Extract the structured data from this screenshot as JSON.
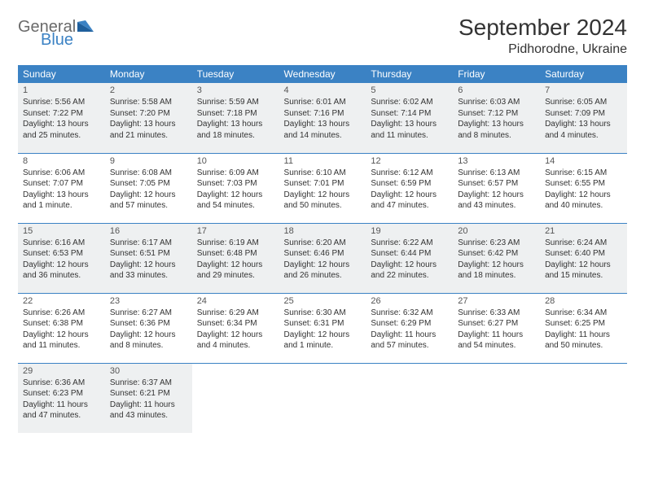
{
  "brand": {
    "line1": "General",
    "line2": "Blue"
  },
  "title": "September 2024",
  "location": "Pidhorodne, Ukraine",
  "colors": {
    "header_bg": "#3b82c4",
    "header_fg": "#ffffff",
    "shaded_bg": "#eef0f1",
    "border": "#3b82c4",
    "text": "#333333",
    "logo_gray": "#6a6a6a",
    "logo_blue": "#3b82c4"
  },
  "typography": {
    "title_fontsize": 28,
    "location_fontsize": 16,
    "dayheader_fontsize": 12,
    "daynum_fontsize": 11,
    "info_fontsize": 10
  },
  "day_names": [
    "Sunday",
    "Monday",
    "Tuesday",
    "Wednesday",
    "Thursday",
    "Friday",
    "Saturday"
  ],
  "weeks": [
    {
      "shaded": true,
      "days": [
        {
          "n": "1",
          "sr": "Sunrise: 5:56 AM",
          "ss": "Sunset: 7:22 PM",
          "dl": "Daylight: 13 hours and 25 minutes."
        },
        {
          "n": "2",
          "sr": "Sunrise: 5:58 AM",
          "ss": "Sunset: 7:20 PM",
          "dl": "Daylight: 13 hours and 21 minutes."
        },
        {
          "n": "3",
          "sr": "Sunrise: 5:59 AM",
          "ss": "Sunset: 7:18 PM",
          "dl": "Daylight: 13 hours and 18 minutes."
        },
        {
          "n": "4",
          "sr": "Sunrise: 6:01 AM",
          "ss": "Sunset: 7:16 PM",
          "dl": "Daylight: 13 hours and 14 minutes."
        },
        {
          "n": "5",
          "sr": "Sunrise: 6:02 AM",
          "ss": "Sunset: 7:14 PM",
          "dl": "Daylight: 13 hours and 11 minutes."
        },
        {
          "n": "6",
          "sr": "Sunrise: 6:03 AM",
          "ss": "Sunset: 7:12 PM",
          "dl": "Daylight: 13 hours and 8 minutes."
        },
        {
          "n": "7",
          "sr": "Sunrise: 6:05 AM",
          "ss": "Sunset: 7:09 PM",
          "dl": "Daylight: 13 hours and 4 minutes."
        }
      ]
    },
    {
      "shaded": false,
      "days": [
        {
          "n": "8",
          "sr": "Sunrise: 6:06 AM",
          "ss": "Sunset: 7:07 PM",
          "dl": "Daylight: 13 hours and 1 minute."
        },
        {
          "n": "9",
          "sr": "Sunrise: 6:08 AM",
          "ss": "Sunset: 7:05 PM",
          "dl": "Daylight: 12 hours and 57 minutes."
        },
        {
          "n": "10",
          "sr": "Sunrise: 6:09 AM",
          "ss": "Sunset: 7:03 PM",
          "dl": "Daylight: 12 hours and 54 minutes."
        },
        {
          "n": "11",
          "sr": "Sunrise: 6:10 AM",
          "ss": "Sunset: 7:01 PM",
          "dl": "Daylight: 12 hours and 50 minutes."
        },
        {
          "n": "12",
          "sr": "Sunrise: 6:12 AM",
          "ss": "Sunset: 6:59 PM",
          "dl": "Daylight: 12 hours and 47 minutes."
        },
        {
          "n": "13",
          "sr": "Sunrise: 6:13 AM",
          "ss": "Sunset: 6:57 PM",
          "dl": "Daylight: 12 hours and 43 minutes."
        },
        {
          "n": "14",
          "sr": "Sunrise: 6:15 AM",
          "ss": "Sunset: 6:55 PM",
          "dl": "Daylight: 12 hours and 40 minutes."
        }
      ]
    },
    {
      "shaded": true,
      "days": [
        {
          "n": "15",
          "sr": "Sunrise: 6:16 AM",
          "ss": "Sunset: 6:53 PM",
          "dl": "Daylight: 12 hours and 36 minutes."
        },
        {
          "n": "16",
          "sr": "Sunrise: 6:17 AM",
          "ss": "Sunset: 6:51 PM",
          "dl": "Daylight: 12 hours and 33 minutes."
        },
        {
          "n": "17",
          "sr": "Sunrise: 6:19 AM",
          "ss": "Sunset: 6:48 PM",
          "dl": "Daylight: 12 hours and 29 minutes."
        },
        {
          "n": "18",
          "sr": "Sunrise: 6:20 AM",
          "ss": "Sunset: 6:46 PM",
          "dl": "Daylight: 12 hours and 26 minutes."
        },
        {
          "n": "19",
          "sr": "Sunrise: 6:22 AM",
          "ss": "Sunset: 6:44 PM",
          "dl": "Daylight: 12 hours and 22 minutes."
        },
        {
          "n": "20",
          "sr": "Sunrise: 6:23 AM",
          "ss": "Sunset: 6:42 PM",
          "dl": "Daylight: 12 hours and 18 minutes."
        },
        {
          "n": "21",
          "sr": "Sunrise: 6:24 AM",
          "ss": "Sunset: 6:40 PM",
          "dl": "Daylight: 12 hours and 15 minutes."
        }
      ]
    },
    {
      "shaded": false,
      "days": [
        {
          "n": "22",
          "sr": "Sunrise: 6:26 AM",
          "ss": "Sunset: 6:38 PM",
          "dl": "Daylight: 12 hours and 11 minutes."
        },
        {
          "n": "23",
          "sr": "Sunrise: 6:27 AM",
          "ss": "Sunset: 6:36 PM",
          "dl": "Daylight: 12 hours and 8 minutes."
        },
        {
          "n": "24",
          "sr": "Sunrise: 6:29 AM",
          "ss": "Sunset: 6:34 PM",
          "dl": "Daylight: 12 hours and 4 minutes."
        },
        {
          "n": "25",
          "sr": "Sunrise: 6:30 AM",
          "ss": "Sunset: 6:31 PM",
          "dl": "Daylight: 12 hours and 1 minute."
        },
        {
          "n": "26",
          "sr": "Sunrise: 6:32 AM",
          "ss": "Sunset: 6:29 PM",
          "dl": "Daylight: 11 hours and 57 minutes."
        },
        {
          "n": "27",
          "sr": "Sunrise: 6:33 AM",
          "ss": "Sunset: 6:27 PM",
          "dl": "Daylight: 11 hours and 54 minutes."
        },
        {
          "n": "28",
          "sr": "Sunrise: 6:34 AM",
          "ss": "Sunset: 6:25 PM",
          "dl": "Daylight: 11 hours and 50 minutes."
        }
      ]
    },
    {
      "shaded": true,
      "days": [
        {
          "n": "29",
          "sr": "Sunrise: 6:36 AM",
          "ss": "Sunset: 6:23 PM",
          "dl": "Daylight: 11 hours and 47 minutes."
        },
        {
          "n": "30",
          "sr": "Sunrise: 6:37 AM",
          "ss": "Sunset: 6:21 PM",
          "dl": "Daylight: 11 hours and 43 minutes."
        },
        {
          "empty": true
        },
        {
          "empty": true
        },
        {
          "empty": true
        },
        {
          "empty": true
        },
        {
          "empty": true
        }
      ]
    }
  ]
}
